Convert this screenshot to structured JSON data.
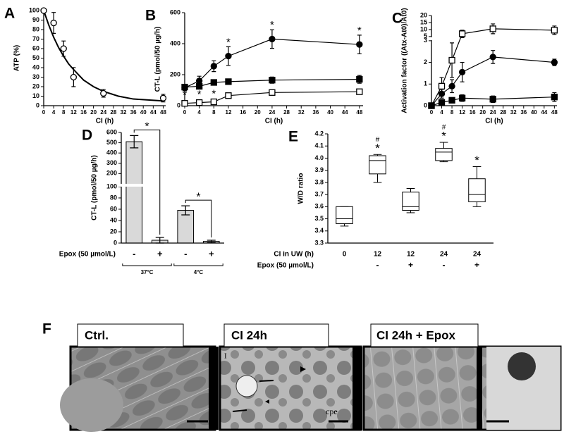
{
  "chart_data": [
    {
      "type": "scatter",
      "panel": "A",
      "ylabel": "ATP (%)",
      "xlabel": "CI (h)",
      "xlim": [
        0,
        49
      ],
      "xticks": [
        0,
        4,
        8,
        12,
        16,
        20,
        24,
        28,
        32,
        36,
        40,
        44,
        48
      ],
      "ylim": [
        0,
        100
      ],
      "yticks": [
        0,
        10,
        20,
        30,
        40,
        50,
        60,
        70,
        80,
        90,
        100
      ],
      "series": [
        {
          "marker": "circle-open",
          "color": "#000000",
          "x": [
            0,
            4,
            8,
            12,
            24,
            48
          ],
          "values": [
            100,
            87,
            60,
            30,
            13,
            8
          ],
          "errors": [
            0,
            11,
            8,
            10,
            4,
            4
          ]
        },
        {
          "line": true,
          "color": "#000000",
          "x": [
            0,
            2,
            4,
            6,
            8,
            10,
            12,
            16,
            20,
            24,
            30,
            36,
            42,
            48
          ],
          "values": [
            100,
            85,
            72,
            61,
            52,
            44,
            38,
            27,
            20,
            15,
            10,
            7,
            6,
            5
          ]
        }
      ]
    },
    {
      "type": "scatter",
      "panel": "B",
      "ylabel": "CT-L (pmol/50 µg/h)",
      "xlabel": "CI (h)",
      "xlim": [
        0,
        49
      ],
      "xticks": [
        0,
        4,
        8,
        12,
        16,
        20,
        24,
        28,
        32,
        36,
        40,
        44,
        48
      ],
      "ylim": [
        0,
        600
      ],
      "yticks": [
        0,
        200,
        400,
        600
      ],
      "series": [
        {
          "marker": "circle",
          "line": true,
          "color": "#000000",
          "x": [
            0,
            4,
            8,
            12,
            24,
            48
          ],
          "values": [
            115,
            160,
            255,
            320,
            430,
            395
          ],
          "errors": [
            20,
            30,
            35,
            60,
            60,
            60
          ],
          "annotations": [
            null,
            null,
            null,
            "*",
            "*",
            "*"
          ]
        },
        {
          "marker": "square",
          "line": true,
          "color": "#000000",
          "x": [
            0,
            4,
            8,
            12,
            24,
            48
          ],
          "values": [
            120,
            125,
            150,
            155,
            165,
            170
          ],
          "errors": [
            15,
            15,
            10,
            10,
            20,
            25
          ]
        },
        {
          "marker": "square-open",
          "line": true,
          "color": "#000000",
          "x": [
            0,
            4,
            8,
            12,
            24,
            48
          ],
          "values": [
            15,
            20,
            25,
            65,
            85,
            90
          ],
          "errors": [
            5,
            5,
            5,
            8,
            10,
            10
          ],
          "annotations": [
            "*",
            "*",
            "*",
            null,
            null,
            null
          ]
        }
      ]
    },
    {
      "type": "scatter",
      "panel": "C",
      "ylabel": "Activation factor ((Atx-At0)/At0)",
      "xlabel": "CI (h)",
      "xlim": [
        0,
        49
      ],
      "xticks": [
        0,
        4,
        8,
        12,
        16,
        20,
        24,
        28,
        32,
        36,
        40,
        44,
        48
      ],
      "ysegments": [
        [
          0,
          3
        ],
        [
          5,
          20
        ]
      ],
      "yticks": [
        0,
        1,
        2,
        3,
        5,
        10,
        15,
        20
      ],
      "series": [
        {
          "marker": "square-open",
          "line": true,
          "color": "#000000",
          "x": [
            0,
            4,
            8,
            12,
            24,
            48
          ],
          "values": [
            0,
            0.9,
            2.1,
            7,
            10.5,
            9.5
          ],
          "errors": [
            0,
            0.4,
            0.8,
            2.5,
            3.5,
            3
          ]
        },
        {
          "marker": "circle",
          "line": true,
          "color": "#000000",
          "x": [
            0,
            4,
            8,
            12,
            24,
            48
          ],
          "values": [
            0,
            0.55,
            0.9,
            1.55,
            2.25,
            2.0
          ],
          "errors": [
            0,
            0.2,
            0.3,
            0.45,
            0.3,
            0.15
          ]
        },
        {
          "marker": "square",
          "line": true,
          "color": "#000000",
          "x": [
            0,
            4,
            8,
            12,
            24,
            48
          ],
          "values": [
            0,
            0.15,
            0.25,
            0.35,
            0.3,
            0.4
          ],
          "errors": [
            0,
            0.1,
            0.1,
            0.15,
            0.15,
            0.2
          ]
        }
      ]
    },
    {
      "type": "bar",
      "panel": "D",
      "ylabel": "CT-L (pmol/50 µg/h)",
      "row_label": "Epox (50 µmol/L)",
      "categories": [
        "-",
        "+",
        "-",
        "+"
      ],
      "values": [
        510,
        5,
        58,
        3
      ],
      "errors": [
        60,
        5,
        8,
        2
      ],
      "color": "#d9d9d9",
      "ysegments": [
        [
          0,
          100
        ],
        [
          100,
          600
        ]
      ],
      "yticks": [
        0,
        20,
        40,
        60,
        80,
        100,
        200,
        300,
        400,
        500,
        600
      ],
      "groups": [
        {
          "label": "37°C",
          "span": [
            0,
            1
          ]
        },
        {
          "label": "4°C",
          "span": [
            2,
            3
          ]
        }
      ],
      "comparisons": [
        {
          "pair": [
            0,
            1
          ],
          "label": "*"
        },
        {
          "pair": [
            2,
            3
          ],
          "label": "*"
        }
      ]
    },
    {
      "type": "box",
      "panel": "E",
      "ylabel": "W/D ratio",
      "row_labels": [
        "CI in UW (h)",
        "Epox (50 µmol/L)"
      ],
      "categories": [
        "0",
        "12",
        "12",
        "24",
        "24"
      ],
      "epox": [
        null,
        "-",
        "+",
        "-",
        "+"
      ],
      "ylim": [
        3.3,
        4.2
      ],
      "yticks": [
        3.3,
        3.4,
        3.5,
        3.6,
        3.7,
        3.8,
        3.9,
        {
          "value": 4,
          "label": "4.0"
        },
        4.1,
        4.2
      ],
      "boxes": [
        {
          "min": 3.44,
          "q1": 3.46,
          "median": 3.5,
          "q3": 3.6,
          "max": 3.6
        },
        {
          "min": 3.8,
          "q1": 3.87,
          "median": 3.98,
          "q3": 4.02,
          "max": 4.03,
          "annotations": [
            "#",
            "*"
          ]
        },
        {
          "min": 3.55,
          "q1": 3.57,
          "median": 3.6,
          "q3": 3.72,
          "max": 3.75
        },
        {
          "min": 3.97,
          "q1": 3.98,
          "median": 4.05,
          "q3": 4.08,
          "max": 4.13,
          "annotations": [
            "#",
            "*"
          ]
        },
        {
          "min": 3.6,
          "q1": 3.64,
          "median": 3.7,
          "q3": 3.83,
          "max": 3.93,
          "annotations": [
            "*"
          ]
        }
      ]
    }
  ],
  "figure_f": {
    "panel": "F",
    "panels": [
      {
        "label": "Ctrl."
      },
      {
        "label": "CI 24h",
        "annotations": [
          "I",
          "cpe"
        ]
      },
      {
        "label": "CI 24h + Epox"
      }
    ]
  }
}
